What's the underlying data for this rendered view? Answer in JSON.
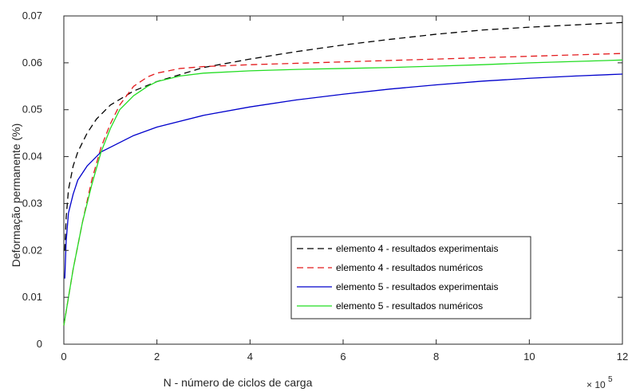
{
  "chart_data": {
    "type": "line",
    "xlabel": "N - número de ciclos de carga",
    "ylabel": "Deformação permanente (%)",
    "x_multiplier_label": "× 10",
    "x_multiplier_exponent": "5",
    "xlim": [
      0,
      12
    ],
    "ylim": [
      0,
      0.07
    ],
    "xticks": [
      0,
      2,
      4,
      6,
      8,
      10,
      12
    ],
    "yticks": [
      0,
      0.01,
      0.02,
      0.03,
      0.04,
      0.05,
      0.06,
      0.07
    ],
    "xtick_labels": [
      "0",
      "2",
      "4",
      "6",
      "8",
      "10",
      "12"
    ],
    "ytick_labels": [
      "0",
      "0.01",
      "0.02",
      "0.03",
      "0.04",
      "0.05",
      "0.06",
      "0.07"
    ],
    "grid": false,
    "legend_position": "bottom-right",
    "series": [
      {
        "name": "elemento 4 - resultados experimentais",
        "color": "#000000",
        "dash": "dashed",
        "x": [
          0.02,
          0.05,
          0.1,
          0.2,
          0.3,
          0.5,
          0.7,
          1.0,
          1.5,
          2.0,
          3.0,
          4.0,
          5.0,
          6.0,
          7.0,
          8.0,
          9.0,
          10.0,
          11.0,
          12.0
        ],
        "y": [
          0.02,
          0.027,
          0.033,
          0.038,
          0.041,
          0.045,
          0.048,
          0.051,
          0.054,
          0.056,
          0.059,
          0.0608,
          0.0624,
          0.0638,
          0.065,
          0.0661,
          0.067,
          0.0676,
          0.0681,
          0.0686
        ]
      },
      {
        "name": "elemento 4 - resultados numéricos",
        "color": "#e31a1c",
        "dash": "dashed",
        "x": [
          0.0,
          0.1,
          0.2,
          0.4,
          0.6,
          0.8,
          1.0,
          1.2,
          1.5,
          1.8,
          2.0,
          2.5,
          3.0,
          4.0,
          5.0,
          6.0,
          7.0,
          8.0,
          9.0,
          10.0,
          11.0,
          12.0
        ],
        "y": [
          0.004,
          0.01,
          0.016,
          0.026,
          0.035,
          0.042,
          0.047,
          0.051,
          0.055,
          0.057,
          0.0578,
          0.0588,
          0.0592,
          0.0596,
          0.0599,
          0.0602,
          0.0605,
          0.0608,
          0.0611,
          0.0614,
          0.0617,
          0.062
        ]
      },
      {
        "name": "elemento 5 - resultados experimentais",
        "color": "#0000cc",
        "dash": "solid",
        "x": [
          0.02,
          0.05,
          0.1,
          0.2,
          0.3,
          0.5,
          0.8,
          1.0,
          1.5,
          2.0,
          3.0,
          4.0,
          5.0,
          6.0,
          7.0,
          8.0,
          9.0,
          10.0,
          11.0,
          12.0
        ],
        "y": [
          0.014,
          0.022,
          0.028,
          0.032,
          0.035,
          0.038,
          0.041,
          0.042,
          0.0445,
          0.0463,
          0.0488,
          0.0506,
          0.0521,
          0.0533,
          0.0544,
          0.0553,
          0.0561,
          0.0567,
          0.0572,
          0.0576
        ]
      },
      {
        "name": "elemento 5 - resultados numéricos",
        "color": "#22dd22",
        "dash": "solid",
        "x": [
          0.0,
          0.1,
          0.2,
          0.4,
          0.6,
          0.8,
          1.0,
          1.2,
          1.5,
          1.8,
          2.0,
          2.5,
          3.0,
          4.0,
          5.0,
          6.0,
          7.0,
          8.0,
          9.0,
          10.0,
          11.0,
          12.0
        ],
        "y": [
          0.004,
          0.01,
          0.016,
          0.026,
          0.034,
          0.041,
          0.046,
          0.05,
          0.053,
          0.055,
          0.056,
          0.0572,
          0.0578,
          0.0583,
          0.0586,
          0.0588,
          0.059,
          0.0593,
          0.0596,
          0.06,
          0.0603,
          0.0606
        ]
      }
    ]
  }
}
